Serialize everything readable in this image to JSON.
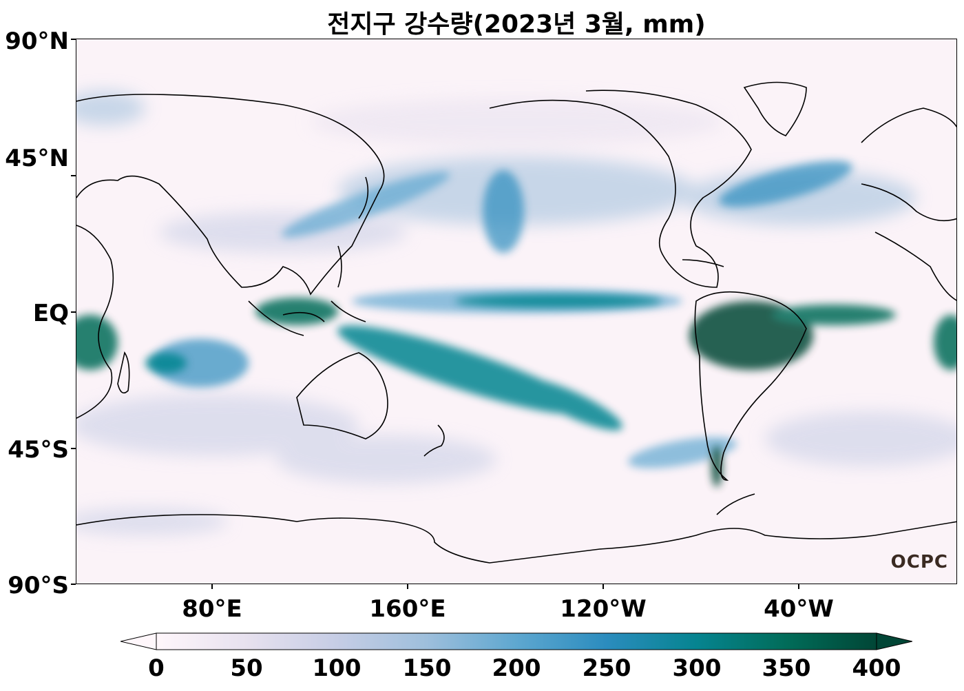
{
  "title": "전지구 강수량(2023년 3월, mm)",
  "lat_labels": [
    "90°N",
    "45°N",
    "EQ",
    "45°S",
    "90°S"
  ],
  "lon_labels": [
    "80°E",
    "160°E",
    "120°W",
    "40°W"
  ],
  "colorbar": {
    "ticks": [
      "0",
      "50",
      "100",
      "150",
      "200",
      "250",
      "300",
      "350",
      "400"
    ],
    "colors": [
      "#fff7fb",
      "#e7e1ef",
      "#c6cde5",
      "#9ebfdc",
      "#5ea7d0",
      "#2b8cbe",
      "#068490",
      "#016c59",
      "#014636"
    ],
    "extend": "both"
  },
  "watermark": "OCPC",
  "colors": {
    "coast": "#000000",
    "wet": "#016c59",
    "dry": "#fbf3f8"
  }
}
